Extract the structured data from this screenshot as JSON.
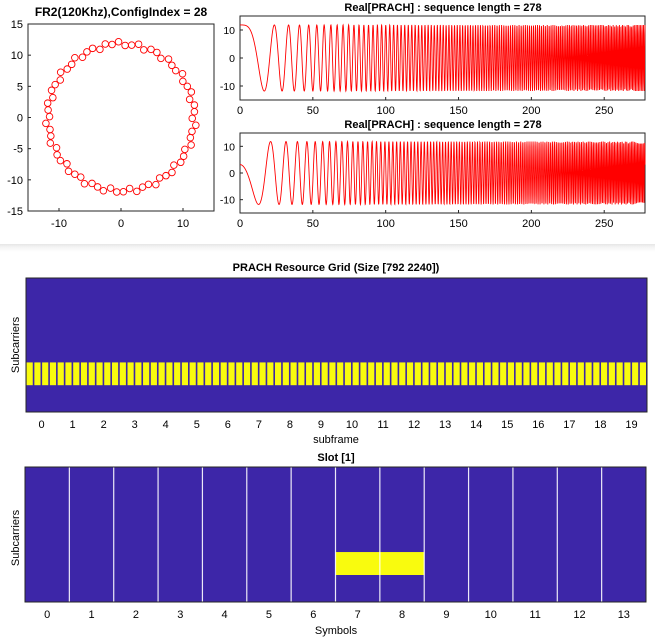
{
  "chart_data": [
    {
      "type": "scatter",
      "title": "FR2(120Khz),ConfigIndex = 28",
      "xlabel": "",
      "ylabel": "",
      "xlim": [
        -15,
        15
      ],
      "ylim": [
        -15,
        15
      ],
      "xticks": [
        -10,
        0,
        10
      ],
      "yticks": [
        15,
        10,
        5,
        0,
        -5,
        -10,
        -15
      ],
      "marker": "circle",
      "color": "#ff0000",
      "radius": 11.8,
      "num_points": 70,
      "phase_offset_deg": 97
    },
    {
      "type": "line",
      "title": "Real[PRACH] : sequence length = 278",
      "xlabel": "",
      "ylabel": "",
      "xlim": [
        0,
        278
      ],
      "ylim": [
        -15,
        15
      ],
      "xticks": [
        0,
        50,
        100,
        150,
        200,
        250
      ],
      "yticks": [
        10,
        0,
        -10
      ],
      "color": "#ff0000",
      "amplitude": 11.8,
      "sample_count": 278,
      "phase_offset": 0.0
    },
    {
      "type": "line",
      "title": "Real[PRACH] : sequence length = 278",
      "xlabel": "",
      "ylabel": "",
      "xlim": [
        0,
        278
      ],
      "ylim": [
        -15,
        15
      ],
      "xticks": [
        0,
        50,
        100,
        150,
        200,
        250
      ],
      "yticks": [
        10,
        0,
        -10
      ],
      "color": "#ff0000",
      "amplitude": 11.8,
      "sample_count": 278,
      "phase_offset": 1.3
    },
    {
      "type": "heatmap",
      "title": "PRACH Resource Grid (Size [792 2240])",
      "xlabel": "subframe",
      "ylabel": "Subcarriers",
      "xticks": [
        "0",
        "1",
        "2",
        "3",
        "4",
        "5",
        "6",
        "7",
        "8",
        "9",
        "10",
        "11",
        "12",
        "13",
        "14",
        "15",
        "16",
        "17",
        "18",
        "19"
      ],
      "num_columns": 80,
      "active_band_fraction": [
        0.63,
        0.8
      ],
      "background_color": "#3d26a8",
      "active_color": "#f9fb0e"
    },
    {
      "type": "heatmap",
      "title": "Slot [1]",
      "xlabel": "Symbols",
      "ylabel": "Subcarriers",
      "xticks": [
        "0",
        "1",
        "2",
        "3",
        "4",
        "5",
        "6",
        "7",
        "8",
        "9",
        "10",
        "11",
        "12",
        "13"
      ],
      "active_symbols": [
        7,
        8
      ],
      "active_band_fraction": [
        0.63,
        0.8
      ],
      "background_color": "#3d26a8",
      "active_color": "#f9fb0e"
    }
  ]
}
